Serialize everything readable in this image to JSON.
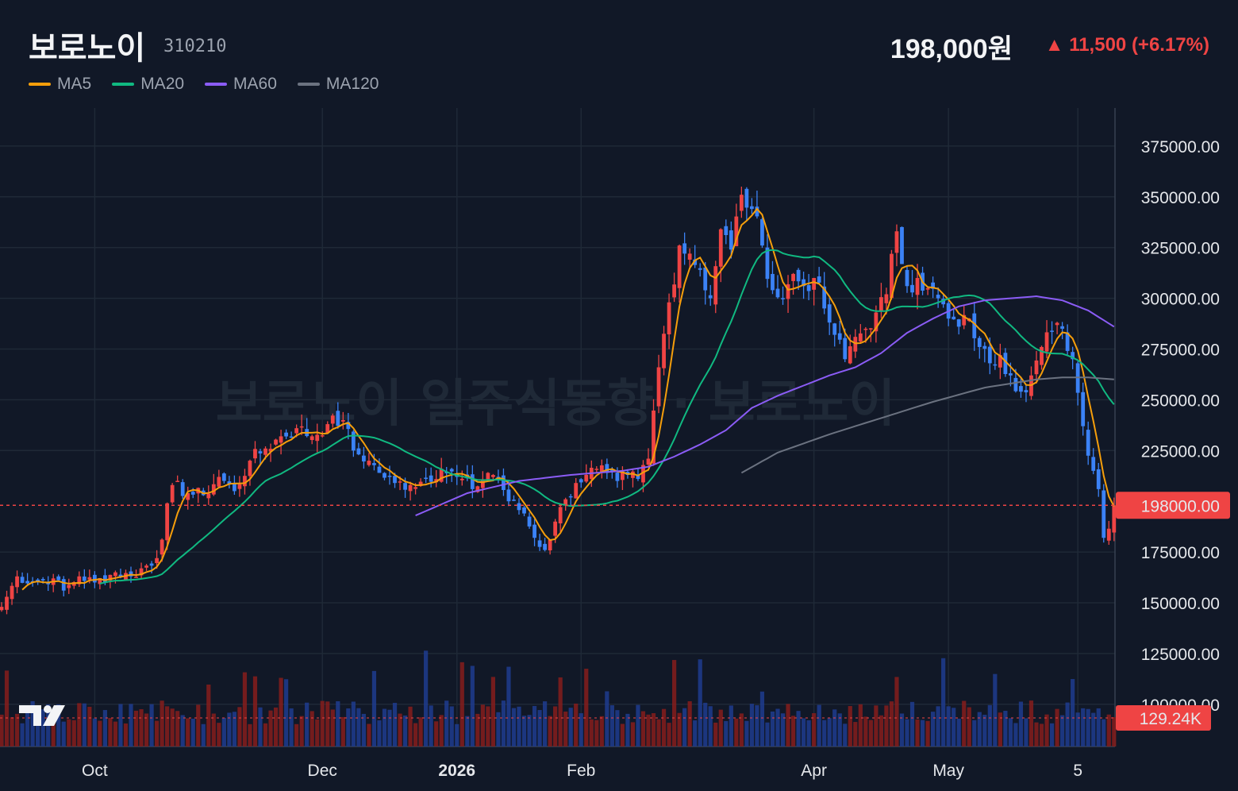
{
  "header": {
    "name": "보로노이",
    "code": "310210",
    "price": "198,000원",
    "change": "▲ 11,500 (+6.17%)"
  },
  "legend": [
    {
      "label": "MA5",
      "color": "#f59e0b"
    },
    {
      "label": "MA20",
      "color": "#10b981"
    },
    {
      "label": "MA60",
      "color": "#8b5cf6"
    },
    {
      "label": "MA120",
      "color": "#6b7280"
    }
  ],
  "watermark": "보로노이 일주식동향 · 보로노이",
  "colors": {
    "background": "#111827",
    "grid": "#1f2937",
    "up": "#ef4444",
    "down": "#3b82f6",
    "up_volume": "#7f1d1d",
    "down_volume": "#1e3a8a"
  },
  "chart_data": {
    "type": "candlestick",
    "price_axis": {
      "ticks": [
        150000,
        175000,
        198000,
        225000,
        250000,
        275000,
        300000,
        325000,
        350000,
        375000
      ],
      "tick_labels": [
        "150000.00",
        "175000.00",
        "198000.00",
        "225000.00",
        "250000.00",
        "275000.00",
        "300000.00",
        "325000.00",
        "350000.00",
        "375000.00"
      ],
      "current_price": 198000,
      "current_label": "198000.00",
      "partial_label": "125000.00",
      "partial_value": 125000,
      "clipped_label": "100000.00",
      "clipped_value": 100000
    },
    "volume_axis": {
      "current_label": "129.24K"
    },
    "x_labels": [
      {
        "label": "Oct",
        "index": 18
      },
      {
        "label": "Dec",
        "index": 62
      },
      {
        "label": "2026",
        "index": 88,
        "bold": true
      },
      {
        "label": "Feb",
        "index": 112
      },
      {
        "label": "Apr",
        "index": 157
      },
      {
        "label": "May",
        "index": 183
      },
      {
        "label": "5",
        "index": 208
      }
    ],
    "close_anchors": [
      [
        0,
        148000
      ],
      [
        3,
        163000
      ],
      [
        6,
        160000
      ],
      [
        10,
        162000
      ],
      [
        12,
        156000
      ],
      [
        15,
        163000
      ],
      [
        18,
        160000
      ],
      [
        22,
        165000
      ],
      [
        25,
        163000
      ],
      [
        30,
        172000
      ],
      [
        33,
        208000
      ],
      [
        36,
        204000
      ],
      [
        39,
        203000
      ],
      [
        42,
        212000
      ],
      [
        45,
        205000
      ],
      [
        48,
        220000
      ],
      [
        51,
        226000
      ],
      [
        54,
        232000
      ],
      [
        57,
        236000
      ],
      [
        60,
        232000
      ],
      [
        63,
        238000
      ],
      [
        66,
        240000
      ],
      [
        68,
        225000
      ],
      [
        71,
        220000
      ],
      [
        73,
        214000
      ],
      [
        76,
        209000
      ],
      [
        79,
        208000
      ],
      [
        82,
        211000
      ],
      [
        85,
        216000
      ],
      [
        88,
        212000
      ],
      [
        91,
        206000
      ],
      [
        94,
        214000
      ],
      [
        96,
        212000
      ],
      [
        98,
        200000
      ],
      [
        101,
        194000
      ],
      [
        103,
        182000
      ],
      [
        105,
        176000
      ],
      [
        107,
        190000
      ],
      [
        109,
        201000
      ],
      [
        111,
        209000
      ],
      [
        113,
        213000
      ],
      [
        115,
        216000
      ],
      [
        117,
        214000
      ],
      [
        119,
        210000
      ],
      [
        121,
        213000
      ],
      [
        123,
        211000
      ],
      [
        125,
        221000
      ],
      [
        127,
        266000
      ],
      [
        129,
        298000
      ],
      [
        131,
        326000
      ],
      [
        133,
        322000
      ],
      [
        135,
        314000
      ],
      [
        137,
        300000
      ],
      [
        139,
        334000
      ],
      [
        141,
        324000
      ],
      [
        143,
        351000
      ],
      [
        145,
        344000
      ],
      [
        147,
        326000
      ],
      [
        149,
        304000
      ],
      [
        151,
        300000
      ],
      [
        153,
        312000
      ],
      [
        155,
        306000
      ],
      [
        157,
        310000
      ],
      [
        159,
        295000
      ],
      [
        161,
        282000
      ],
      [
        163,
        270000
      ],
      [
        165,
        281000
      ],
      [
        167,
        285000
      ],
      [
        169,
        293000
      ],
      [
        171,
        302000
      ],
      [
        173,
        333000
      ],
      [
        175,
        306000
      ],
      [
        177,
        310000
      ],
      [
        179,
        305000
      ],
      [
        181,
        300000
      ],
      [
        183,
        290000
      ],
      [
        185,
        286000
      ],
      [
        187,
        290000
      ],
      [
        189,
        276000
      ],
      [
        191,
        268000
      ],
      [
        193,
        272000
      ],
      [
        195,
        262000
      ],
      [
        197,
        254000
      ],
      [
        199,
        262000
      ],
      [
        201,
        276000
      ],
      [
        203,
        284000
      ],
      [
        205,
        285000
      ],
      [
        207,
        270000
      ],
      [
        209,
        237000
      ],
      [
        211,
        215000
      ],
      [
        212,
        206000
      ],
      [
        213,
        182000
      ],
      [
        214,
        186500
      ],
      [
        215,
        198000
      ]
    ],
    "ma60_anchors": [
      [
        80,
        193000
      ],
      [
        90,
        204000
      ],
      [
        100,
        210000
      ],
      [
        110,
        213000
      ],
      [
        120,
        215000
      ],
      [
        125,
        217000
      ],
      [
        130,
        222000
      ],
      [
        135,
        228000
      ],
      [
        140,
        235000
      ],
      [
        145,
        246000
      ],
      [
        150,
        252000
      ],
      [
        155,
        257000
      ],
      [
        160,
        262000
      ],
      [
        165,
        266000
      ],
      [
        170,
        273000
      ],
      [
        175,
        283000
      ],
      [
        180,
        290000
      ],
      [
        185,
        296000
      ],
      [
        190,
        299000
      ],
      [
        195,
        300000
      ],
      [
        200,
        301000
      ],
      [
        205,
        299000
      ],
      [
        210,
        294000
      ],
      [
        215,
        286000
      ]
    ],
    "ma120_anchors": [
      [
        143,
        214000
      ],
      [
        150,
        224000
      ],
      [
        160,
        233000
      ],
      [
        170,
        241000
      ],
      [
        180,
        249000
      ],
      [
        190,
        256000
      ],
      [
        200,
        260000
      ],
      [
        205,
        261000
      ],
      [
        210,
        261000
      ],
      [
        215,
        260000
      ]
    ]
  }
}
